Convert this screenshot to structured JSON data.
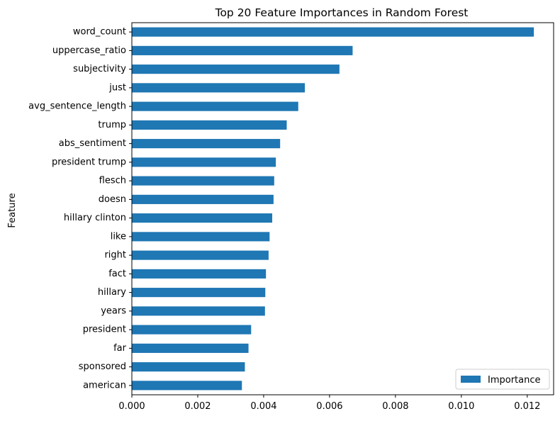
{
  "chart_data": {
    "type": "bar",
    "orientation": "horizontal",
    "title": "Top 20 Feature Importances in Random Forest",
    "xlabel": "",
    "ylabel": "Feature",
    "categories": [
      "word_count",
      "uppercase_ratio",
      "subjectivity",
      "just",
      "avg_sentence_length",
      "trump",
      "abs_sentiment",
      "president trump",
      "flesch",
      "doesn",
      "hillary clinton",
      "like",
      "right",
      "fact",
      "hillary",
      "years",
      "president",
      "far",
      "sponsored",
      "american"
    ],
    "series": [
      {
        "name": "Importance",
        "color": "#1f77b4",
        "values": [
          0.0122,
          0.0067,
          0.0063,
          0.00525,
          0.00505,
          0.0047,
          0.0045,
          0.00437,
          0.00432,
          0.0043,
          0.00426,
          0.00418,
          0.00415,
          0.00407,
          0.00405,
          0.00404,
          0.00362,
          0.00354,
          0.00343,
          0.00334
        ]
      }
    ],
    "xlim": [
      0,
      0.0128
    ],
    "xticks": [
      "0.000",
      "0.002",
      "0.004",
      "0.006",
      "0.008",
      "0.010",
      "0.012"
    ],
    "xtick_values": [
      0,
      0.002,
      0.004,
      0.006,
      0.008,
      0.01,
      0.012
    ],
    "grid": false,
    "legend": "lower-right"
  }
}
